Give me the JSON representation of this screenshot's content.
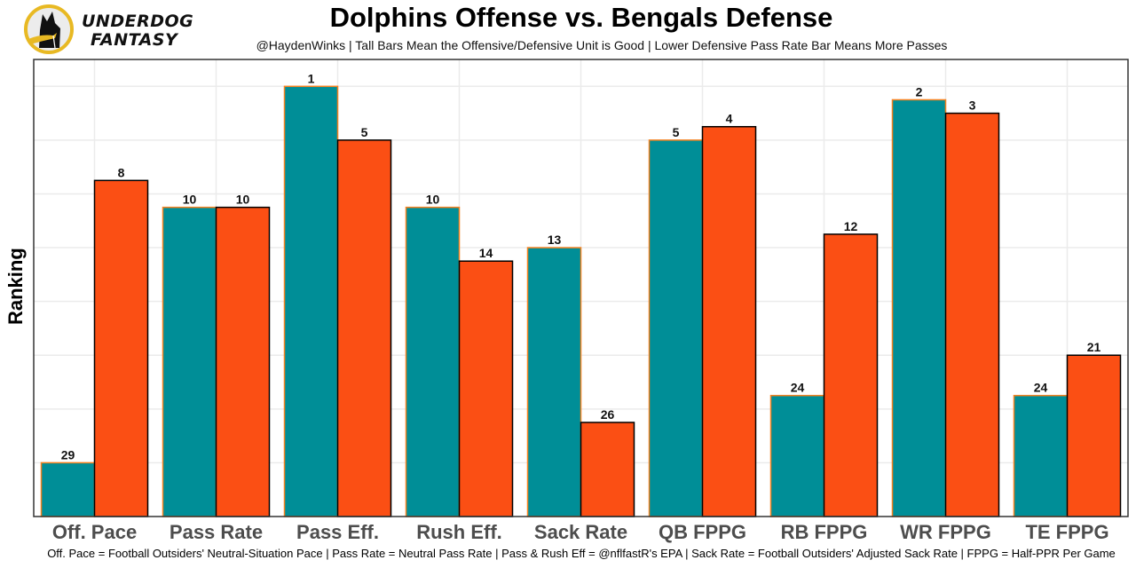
{
  "logo": {
    "name": "underdog-fantasy-logo",
    "line1": "UNDERDOG",
    "line2": "FANTASY",
    "colors": {
      "ring": "#e8b923",
      "dog": "#111111",
      "scarf": "#e8b923"
    }
  },
  "chart_data": {
    "type": "bar",
    "title": "Dolphins Offense vs. Bengals Defense",
    "subtitle": "@HaydenWinks | Tall Bars Mean the Offensive/Defensive Unit is Good | Lower Defensive Pass Rate Bar Means More Passes",
    "xlabel": "",
    "ylabel": "Ranking",
    "caption": "Off. Pace = Football Outsiders' Neutral-Situation Pace | Pass Rate = Neutral Pass Rate | Pass & Rush Eff = @nflfastR's EPA | Sack Rate = Football Outsiders' Adjusted Sack Rate | FPPG = Half-PPR Per Game",
    "categories": [
      "Off. Pace",
      "Pass Rate",
      "Pass Eff.",
      "Rush Eff.",
      "Sack Rate",
      "QB FPPG",
      "RB FPPG",
      "WR FPPG",
      "TE FPPG"
    ],
    "series": [
      {
        "name": "Dolphins Offense",
        "color": "#008e97",
        "outline": "#f58220",
        "ranks": [
          29,
          10,
          1,
          10,
          13,
          5,
          24,
          2,
          24
        ]
      },
      {
        "name": "Bengals Defense",
        "color": "#fb4f14",
        "outline": "#000000",
        "ranks": [
          8,
          10,
          5,
          14,
          26,
          4,
          12,
          3,
          21
        ]
      }
    ],
    "bar_height_rule": "33 - rank",
    "ylim": [
      0,
      34
    ],
    "grid": true,
    "y_tick_labels_visible": false,
    "legend": "none"
  }
}
